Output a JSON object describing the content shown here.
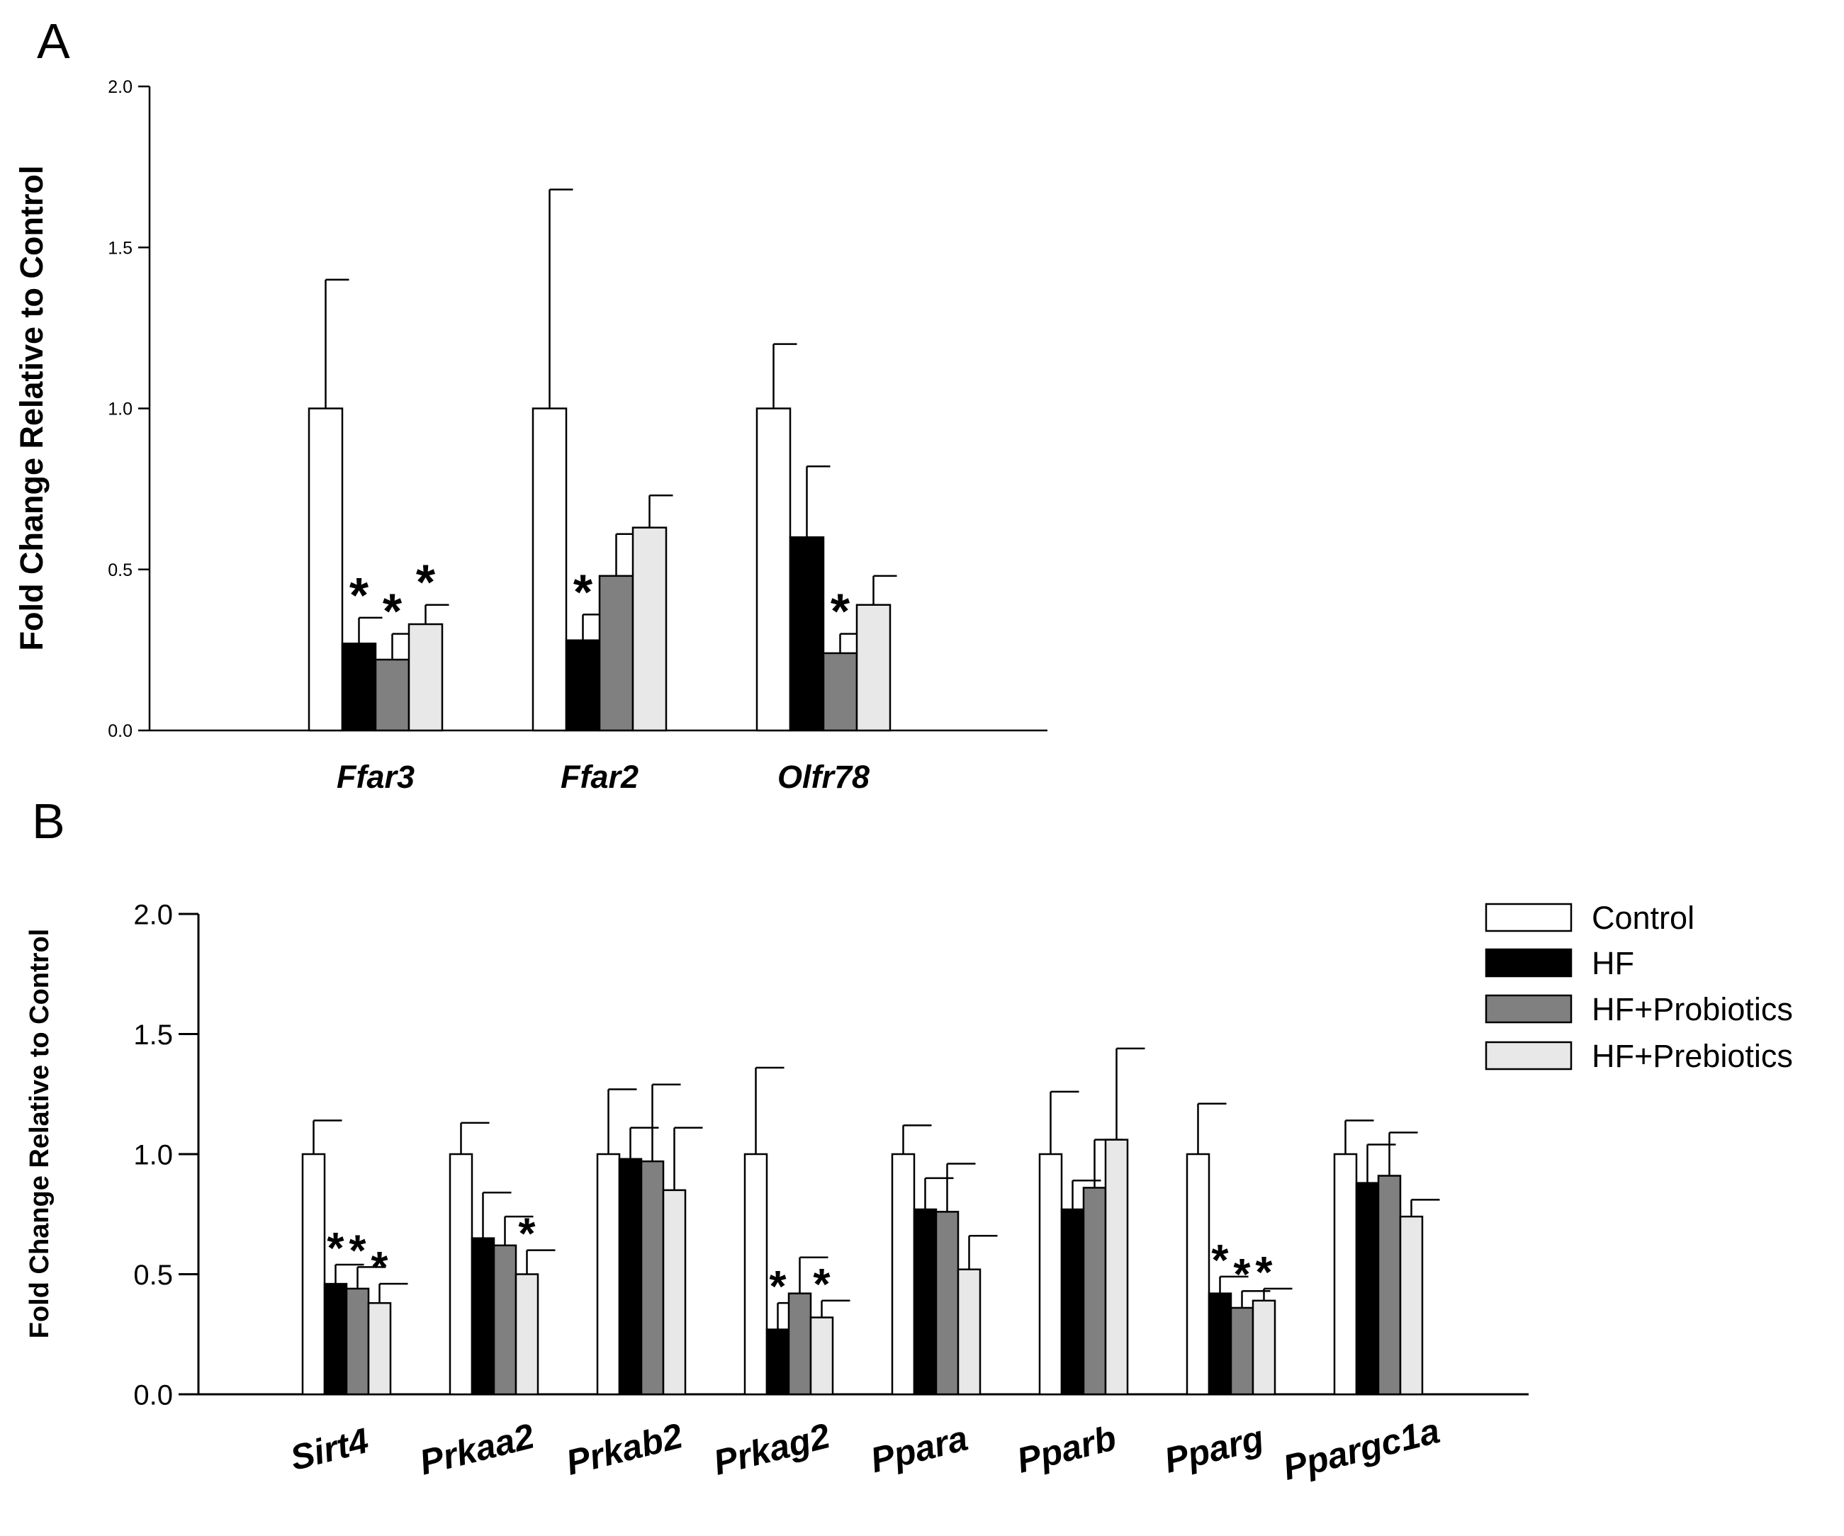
{
  "chart_data": [
    {
      "type": "bar",
      "panel": "A",
      "ylabel": "Fold Change Relative to Control",
      "ylim": [
        0,
        2.0
      ],
      "yticks": [
        "0.0",
        "0.5",
        "1.0",
        "1.5",
        "2.0"
      ],
      "categories": [
        "Ffar3",
        "Ffar2",
        "Olfr78"
      ],
      "series": [
        {
          "name": "Control",
          "color": "#ffffff",
          "values": [
            1.0,
            1.0,
            1.0
          ],
          "errors": [
            0.4,
            0.68,
            0.2
          ],
          "sig": [
            "",
            "",
            ""
          ]
        },
        {
          "name": "HF",
          "color": "#000000",
          "values": [
            0.27,
            0.28,
            0.6
          ],
          "errors": [
            0.08,
            0.08,
            0.22
          ],
          "sig": [
            "*",
            "*",
            ""
          ]
        },
        {
          "name": "HF+Probiotics",
          "color": "#808080",
          "values": [
            0.22,
            0.48,
            0.24
          ],
          "errors": [
            0.08,
            0.13,
            0.06
          ],
          "sig": [
            "*",
            "",
            "*"
          ]
        },
        {
          "name": "HF+Prebiotics",
          "color": "#e8e8e8",
          "values": [
            0.33,
            0.63,
            0.39
          ],
          "errors": [
            0.06,
            0.1,
            0.09
          ],
          "sig": [
            "*",
            "",
            ""
          ]
        }
      ]
    },
    {
      "type": "bar",
      "panel": "B",
      "ylabel": "Fold Change Relative to Control",
      "ylim": [
        0,
        2.0
      ],
      "yticks": [
        "0.0",
        "0.5",
        "1.0",
        "1.5",
        "2.0"
      ],
      "categories": [
        "Sirt4",
        "Prkaa2",
        "Prkab2",
        "Prkag2",
        "Ppara",
        "Pparb",
        "Pparg",
        "Ppargc1a"
      ],
      "legend_position": "top-right",
      "series": [
        {
          "name": "Control",
          "color": "#ffffff",
          "values": [
            1.0,
            1.0,
            1.0,
            1.0,
            1.0,
            1.0,
            1.0,
            1.0
          ],
          "errors": [
            0.14,
            0.13,
            0.27,
            0.36,
            0.12,
            0.26,
            0.21,
            0.14
          ],
          "sig": [
            "",
            "",
            "",
            "",
            "",
            "",
            "",
            ""
          ]
        },
        {
          "name": "HF",
          "color": "#000000",
          "values": [
            0.46,
            0.65,
            0.98,
            0.27,
            0.77,
            0.77,
            0.42,
            0.88
          ],
          "errors": [
            0.08,
            0.19,
            0.13,
            0.11,
            0.13,
            0.12,
            0.07,
            0.16
          ],
          "sig": [
            "*",
            "",
            "",
            "*",
            "",
            "",
            "*",
            ""
          ]
        },
        {
          "name": "HF+Probiotics",
          "color": "#808080",
          "values": [
            0.44,
            0.62,
            0.97,
            0.42,
            0.76,
            0.86,
            0.36,
            0.91
          ],
          "errors": [
            0.09,
            0.12,
            0.32,
            0.15,
            0.2,
            0.2,
            0.07,
            0.18
          ],
          "sig": [
            "*",
            "",
            "",
            "",
            "",
            "",
            "*",
            ""
          ]
        },
        {
          "name": "HF+Prebiotics",
          "color": "#e8e8e8",
          "values": [
            0.38,
            0.5,
            0.85,
            0.32,
            0.52,
            1.06,
            0.39,
            0.74
          ],
          "errors": [
            0.08,
            0.1,
            0.26,
            0.07,
            0.14,
            0.38,
            0.05,
            0.07
          ],
          "sig": [
            "*",
            "*",
            "",
            "*",
            "",
            "",
            "*",
            ""
          ]
        }
      ]
    }
  ],
  "panels": {
    "a_label": "A",
    "b_label": "B"
  },
  "legend": {
    "items": [
      "Control",
      "HF",
      "HF+Probiotics",
      "HF+Prebiotics"
    ]
  }
}
